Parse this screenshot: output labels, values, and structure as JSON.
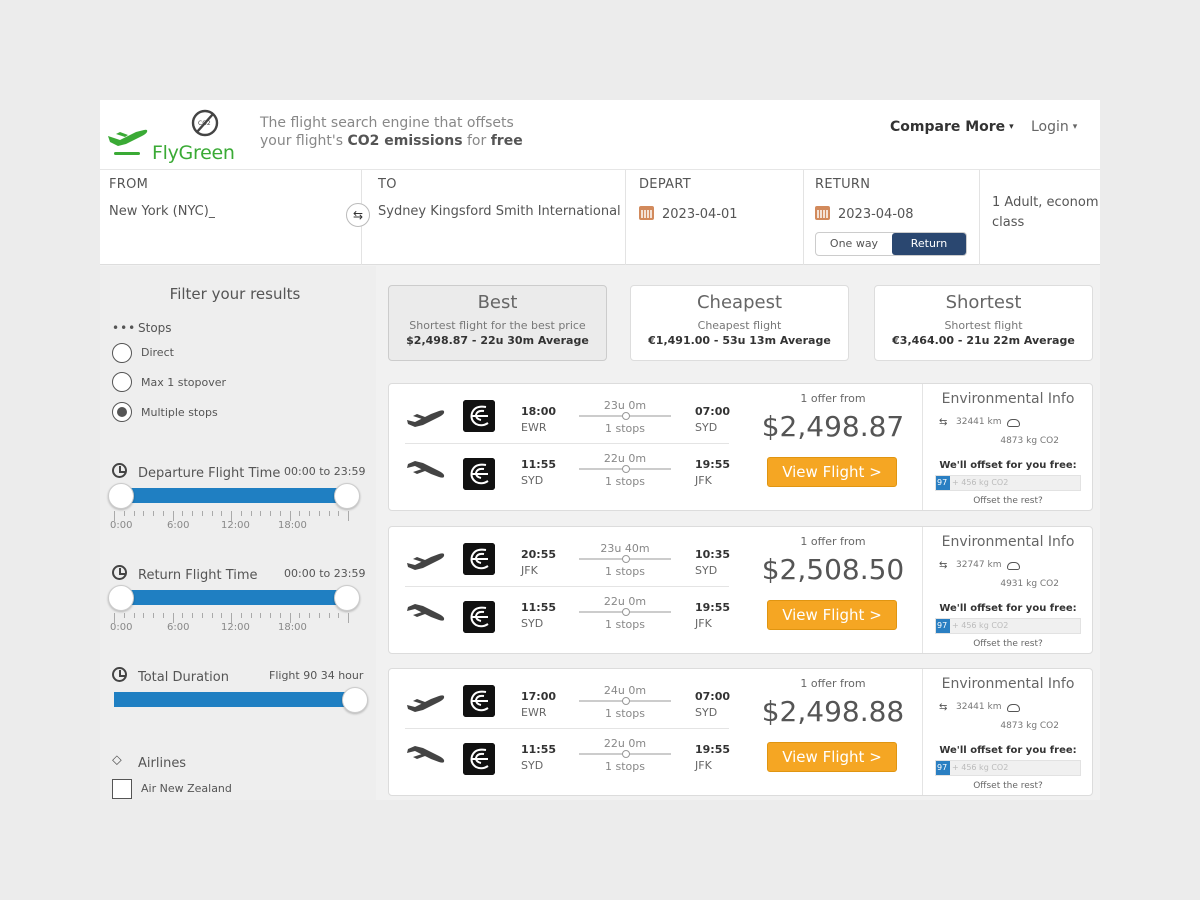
{
  "header": {
    "brand": "FlyGreen",
    "tagline": {
      "line1": "The flight search engine that offsets",
      "line2_pre": "your flight's ",
      "line2_bold": "CO2 emissions",
      "line2_mid": " for ",
      "line2_end": "free"
    },
    "nav": {
      "compare": "Compare More",
      "login": "Login"
    }
  },
  "search": {
    "from": {
      "label": "FROM",
      "value": "New York (NYC)_"
    },
    "to": {
      "label": "TO",
      "value": "Sydney Kingsford Smith International"
    },
    "depart": {
      "label": "DEPART",
      "value": "2023-04-01"
    },
    "return": {
      "label": "RETURN",
      "value": "2023-04-08"
    },
    "trip": {
      "one_way": "One way",
      "return": "Return",
      "selected": "Return"
    },
    "passengers": {
      "line1": "1 Adult, econom",
      "line2": "class"
    }
  },
  "filters": {
    "title": "Filter your results",
    "stops": {
      "label": "Stops",
      "options": [
        "Direct",
        "Max 1 stopover",
        "Multiple stops"
      ],
      "selected": "Multiple stops"
    },
    "departure": {
      "label": "Departure Flight Time",
      "range": "00:00 to 23:59",
      "ticks": [
        "0:00",
        "6:00",
        "12:00",
        "18:00"
      ]
    },
    "return_time": {
      "label": "Return Flight Time",
      "range": "00:00 to 23:59",
      "ticks": [
        "0:00",
        "6:00",
        "12:00",
        "18:00"
      ]
    },
    "duration": {
      "label": "Total Duration",
      "value": "Flight 90 34 hour"
    },
    "airlines": {
      "label": "Airlines",
      "items": [
        "Air New Zealand"
      ]
    }
  },
  "sort_tabs": [
    {
      "title": "Best",
      "desc": "Shortest flight for the best price",
      "summary": "$2,498.87 - 22u 30m Average",
      "active": true
    },
    {
      "title": "Cheapest",
      "desc": "Cheapest flight",
      "summary": "€1,491.00 - 53u 13m Average",
      "active": false
    },
    {
      "title": "Shortest",
      "desc": "Shortest flight",
      "summary": "€3,464.00 - 21u 22m Average",
      "active": false
    }
  ],
  "results": [
    {
      "outbound": {
        "dep_time": "18:00",
        "dep_airport": "EWR",
        "duration": "23u 0m",
        "stops": "1 stops",
        "arr_time": "07:00",
        "arr_airport": "SYD"
      },
      "inbound": {
        "dep_time": "11:55",
        "dep_airport": "SYD",
        "duration": "22u 0m",
        "stops": "1 stops",
        "arr_time": "19:55",
        "arr_airport": "JFK"
      },
      "offer": "1 offer from",
      "price": "$2,498.87",
      "button": "View Flight >",
      "env": {
        "title": "Environmental Info",
        "distance": "32441 km",
        "co2": "4873 kg CO2",
        "offset": "We'll offset for you free:",
        "bar_val": "97",
        "bar_ph": "+ 456 kg CO2",
        "rest": "Offset the rest?"
      }
    },
    {
      "outbound": {
        "dep_time": "20:55",
        "dep_airport": "JFK",
        "duration": "23u 40m",
        "stops": "1 stops",
        "arr_time": "10:35",
        "arr_airport": "SYD"
      },
      "inbound": {
        "dep_time": "11:55",
        "dep_airport": "SYD",
        "duration": "22u 0m",
        "stops": "1 stops",
        "arr_time": "19:55",
        "arr_airport": "JFK"
      },
      "offer": "1 offer from",
      "price": "$2,508.50",
      "button": "View Flight >",
      "env": {
        "title": "Environmental Info",
        "distance": "32747 km",
        "co2": "4931 kg CO2",
        "offset": "We'll offset for you free:",
        "bar_val": "97",
        "bar_ph": "+ 456 kg CO2",
        "rest": "Offset the rest?"
      }
    },
    {
      "outbound": {
        "dep_time": "17:00",
        "dep_airport": "EWR",
        "duration": "24u 0m",
        "stops": "1 stops",
        "arr_time": "07:00",
        "arr_airport": "SYD"
      },
      "inbound": {
        "dep_time": "11:55",
        "dep_airport": "SYD",
        "duration": "22u 0m",
        "stops": "1 stops",
        "arr_time": "19:55",
        "arr_airport": "JFK"
      },
      "offer": "1 offer from",
      "price": "$2,498.88",
      "button": "View Flight >",
      "env": {
        "title": "Environmental Info",
        "distance": "32441 km",
        "co2": "4873 kg CO2",
        "offset": "We'll offset for you free:",
        "bar_val": "97",
        "bar_ph": "+ 456 kg CO2",
        "rest": "Offset the rest?"
      }
    }
  ],
  "colors": {
    "brand_green": "#3aaa35",
    "slider_blue": "#1f7fc2",
    "button_orange": "#f5a623",
    "toggle_navy": "#2a4770"
  },
  "icons": {
    "takeoff": "plane-takeoff-icon",
    "landing": "plane-landing-icon",
    "no_co2": "no-co2-icon",
    "calendar": "calendar-icon",
    "swap": "swap-icon",
    "clock": "clock-icon",
    "tag": "tag-icon",
    "cloud": "cloud-icon",
    "airline": "air-new-zealand-logo"
  }
}
